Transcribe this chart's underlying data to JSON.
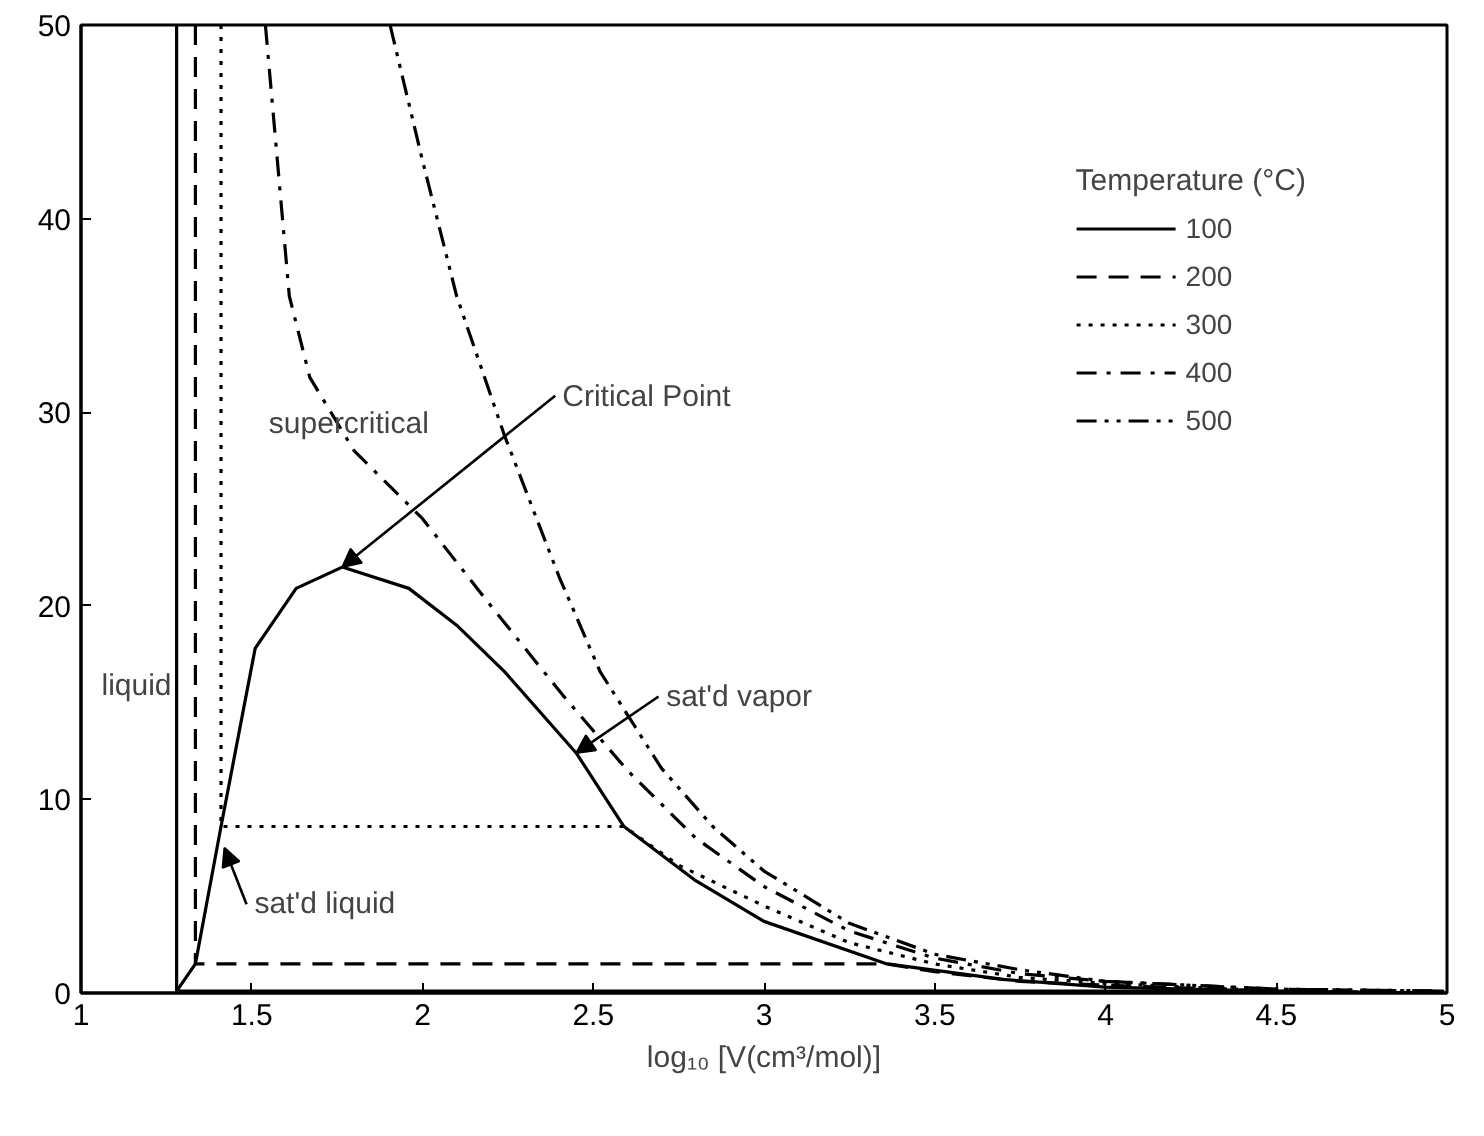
{
  "chart_data": {
    "type": "line",
    "xlabel": "log₁₀ [V(cm³/mol)]",
    "legend_title": "Temperature (°C)",
    "legend": "top right",
    "grid": false,
    "xlim": [
      1,
      5
    ],
    "ylim": [
      0,
      50
    ],
    "xticks": [
      1,
      1.5,
      2,
      2.5,
      3,
      3.5,
      4,
      4.5,
      5
    ],
    "yticks": [
      0,
      10,
      20,
      30,
      40,
      50
    ],
    "series": [
      {
        "name": "100",
        "color": "#000000",
        "line_style": "solid",
        "x": [
          1.28,
          1.28,
          2.0,
          3.0,
          4.0,
          4.48,
          5.0
        ],
        "values": [
          50,
          0.1,
          0.1,
          0.1,
          0.1,
          0.1,
          0.0
        ]
      },
      {
        "name": "200",
        "color": "#000000",
        "line_style": "dashed",
        "x": [
          1.335,
          1.335,
          2.0,
          3.0,
          3.36,
          3.5,
          3.75,
          4.0,
          4.5,
          5.0
        ],
        "values": [
          50,
          1.5,
          1.5,
          1.5,
          1.5,
          1.1,
          0.6,
          0.4,
          0.1,
          0.0
        ]
      },
      {
        "name": "300",
        "color": "#000000",
        "line_style": "dotted",
        "x": [
          1.41,
          1.41,
          2.0,
          2.59,
          2.75,
          3.0,
          3.25,
          3.5,
          3.75,
          4.0,
          4.5,
          5.0
        ],
        "values": [
          50,
          8.6,
          8.6,
          8.6,
          6.6,
          4.5,
          2.6,
          1.5,
          0.8,
          0.5,
          0.1,
          0.0
        ]
      },
      {
        "name": "400",
        "color": "#000000",
        "line_style": "dashdot",
        "x": [
          1.54,
          1.58,
          1.61,
          1.67,
          1.8,
          2.0,
          2.2,
          2.41,
          2.6,
          2.8,
          3.0,
          3.25,
          3.5,
          3.75,
          4.0,
          4.5,
          5.0
        ],
        "values": [
          50,
          42,
          36,
          31.8,
          28,
          24.5,
          20,
          15.4,
          11.5,
          8.0,
          5.5,
          3.2,
          1.8,
          1.0,
          0.6,
          0.2,
          0.1
        ]
      },
      {
        "name": "500",
        "color": "#000000",
        "line_style": "dashdotdot",
        "x": [
          1.905,
          2.0,
          2.1,
          2.24,
          2.4,
          2.52,
          2.7,
          2.85,
          3.0,
          3.25,
          3.5,
          3.75,
          4.0,
          4.5,
          5.0
        ],
        "values": [
          50,
          43,
          36,
          28.8,
          21.5,
          16.6,
          11.6,
          8.6,
          6.3,
          3.6,
          2.0,
          1.2,
          0.6,
          0.2,
          0.1
        ]
      },
      {
        "color": "#000000",
        "line_style": "solid",
        "x": [
          1.28,
          1.335,
          1.41,
          1.51,
          1.63,
          1.765,
          1.96,
          2.1,
          2.24,
          2.45,
          2.59,
          2.8,
          3.0,
          3.36,
          3.7,
          4.0,
          4.48
        ],
        "values": [
          0.1,
          1.5,
          8.6,
          17.8,
          20.9,
          22,
          20.9,
          19,
          16.6,
          12.4,
          8.6,
          5.8,
          3.7,
          1.5,
          0.7,
          0.3,
          0.1
        ]
      }
    ],
    "annotations": [
      {
        "text": "Critical Point",
        "x": 1.765,
        "y": 22
      },
      {
        "text": "sat'd vapor",
        "x": 2.45,
        "y": 12.4
      },
      {
        "text": "sat'd liquid",
        "x": 1.42,
        "y": 7.5
      },
      "supercritical",
      "liquid"
    ]
  }
}
